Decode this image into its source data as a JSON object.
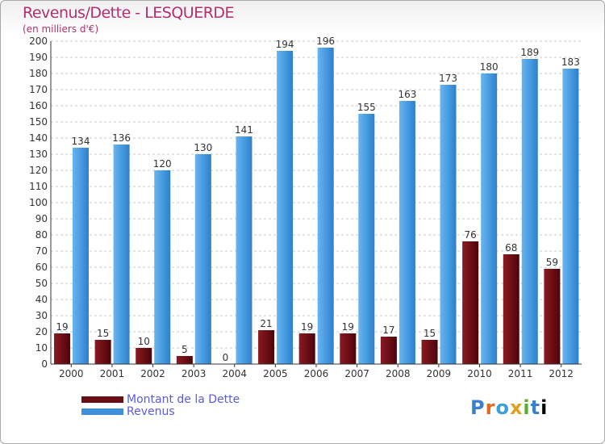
{
  "title": "Revenus/Dette - LESQUERDE",
  "subtitle": "(en milliers d'€)",
  "logo_text": "Proxiti",
  "colors": {
    "dette": "#6b0d14",
    "revenus": "#3c8fd8",
    "title": "#b0306e",
    "legend_text": "#5a5ae0"
  },
  "chart_data": {
    "type": "bar",
    "categories": [
      "2000",
      "2001",
      "2002",
      "2003",
      "2004",
      "2005",
      "2006",
      "2007",
      "2008",
      "2009",
      "2010",
      "2011",
      "2012"
    ],
    "series": [
      {
        "name": "Montant de la Dette",
        "values": [
          19,
          15,
          10,
          5,
          0,
          21,
          19,
          19,
          17,
          15,
          76,
          68,
          59
        ]
      },
      {
        "name": "Revenus",
        "values": [
          134,
          136,
          120,
          130,
          141,
          194,
          196,
          155,
          163,
          173,
          180,
          189,
          183
        ]
      }
    ],
    "ylim": [
      0,
      200
    ],
    "ytick_step": 10,
    "grid": true,
    "legend": "bottom-left"
  }
}
